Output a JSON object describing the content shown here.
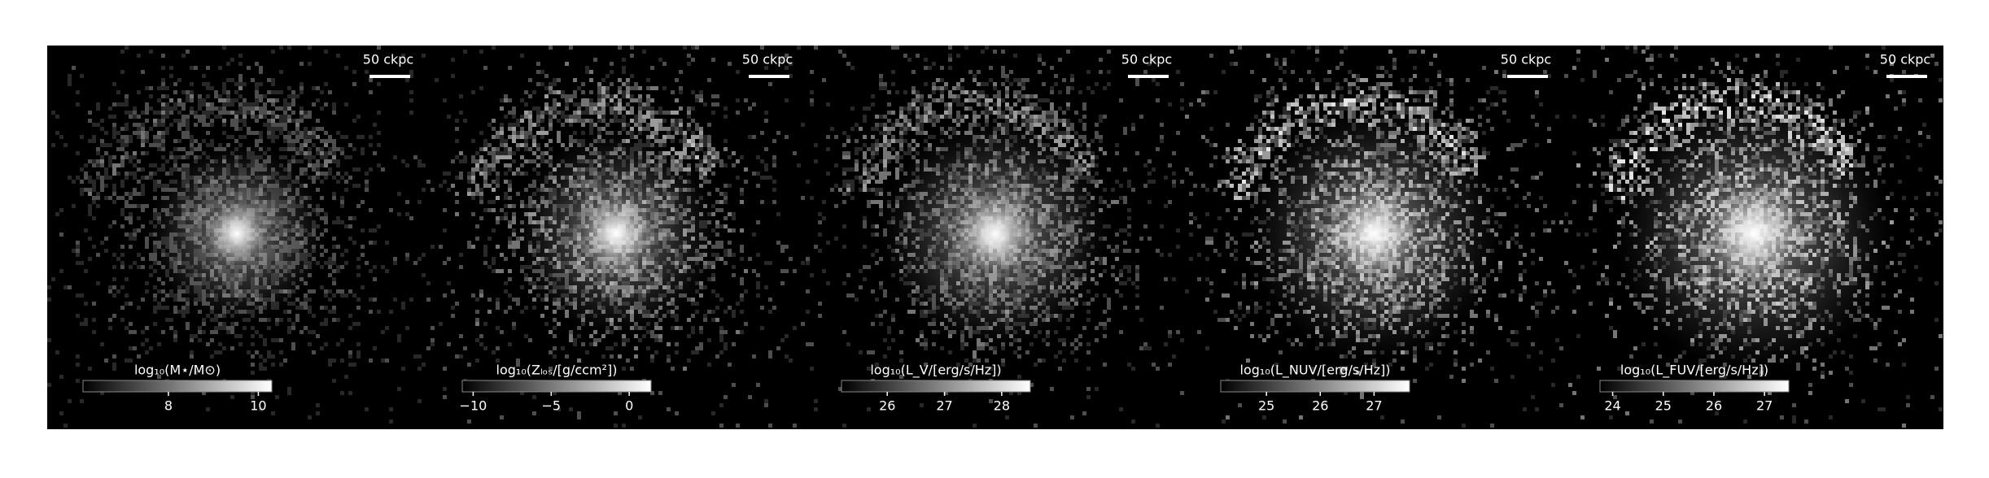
{
  "chart_data": [
    {
      "type": "image",
      "colorbar_label": "log₁₀(M⋆/M⊙)",
      "clim": [
        6.1,
        10.3
      ],
      "cticks": [
        8,
        10
      ],
      "scale_bar": "50 ckpc"
    },
    {
      "type": "image",
      "colorbar_label": "log₁₀(Zₗₒₛ/[g/ccm²])",
      "clim": [
        -10.7,
        1.4
      ],
      "cticks": [
        {
          "value": -10,
          "label": "−10"
        },
        {
          "value": -5,
          "label": "−5"
        },
        0
      ],
      "scale_bar": "50 ckpc"
    },
    {
      "type": "image",
      "colorbar_label": "log₁₀(L_V/[erg/s/Hz])",
      "clim": [
        25.2,
        28.5
      ],
      "cticks": [
        26,
        27,
        28
      ],
      "scale_bar": "50 ckpc"
    },
    {
      "type": "image",
      "colorbar_label": "log₁₀(L_NUV/[erg/s/Hz])",
      "clim": [
        24.15,
        27.66
      ],
      "cticks": [
        25,
        26,
        27
      ],
      "scale_bar": "50 ckpc"
    },
    {
      "type": "image",
      "colorbar_label": "log₁₀(L_FUV/[erg/s/Hz])",
      "clim": [
        23.75,
        27.48
      ],
      "cticks": [
        24,
        25,
        26,
        27
      ],
      "scale_bar": "50 ckpc"
    }
  ]
}
